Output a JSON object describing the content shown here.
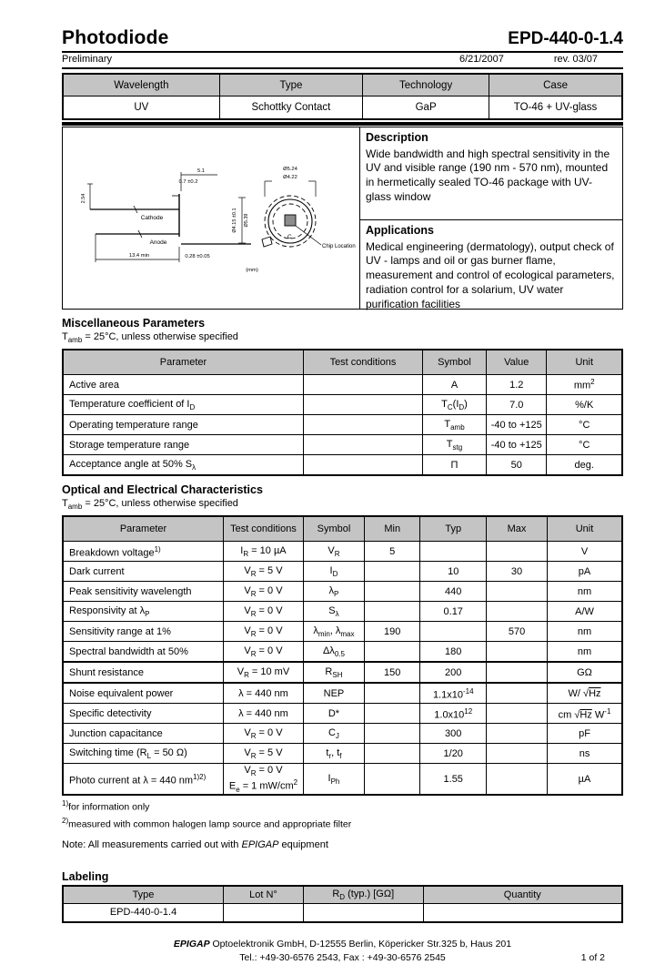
{
  "page": {
    "title": "Photodiode",
    "part_number": "EPD-440-0-1.4",
    "status": "Preliminary",
    "date": "6/21/2007",
    "revision": "rev. 03/07",
    "page_indicator": "1 of 2"
  },
  "classification": {
    "headers": [
      "Wavelength",
      "Type",
      "Technology",
      "Case"
    ],
    "rows": [
      [
        "UV",
        "Schottky Contact",
        "GaP",
        "TO-46 + UV-glass"
      ]
    ]
  },
  "diagram": {
    "cathode": "Cathode",
    "anode": "Anode",
    "chip_location": "Chip Location",
    "chip_marker": "C",
    "units": "(mm)",
    "dim_height": "5.1",
    "dim_rim": "0.7 ±0.2",
    "dim_pitch": "2.54",
    "dim_lead_len": "13.4 min",
    "dim_lead_dia": "0.28 ±0.05",
    "dim_inner_dia": "Ø4.15 ±0.1",
    "dim_outer_dia": "Ø5.39",
    "dim_cap_outer": "Ø5.24",
    "dim_cap_inner": "Ø4.22"
  },
  "description": {
    "title": "Description",
    "body": "Wide bandwidth and high spectral sensitivity in the UV and visible range (190 nm - 570 nm), mounted in hermetically sealed TO-46 package with  UV-glass  window"
  },
  "applications": {
    "title": "Applications",
    "body": "Medical engineering (dermatology), output check of UV - lamps and oil or gas burner flame, measurement and control of ecological parameters, radiation control for a solarium, UV water purification facilities"
  },
  "misc": {
    "title": "Miscellaneous Parameters",
    "condition": "T<sub>amb</sub> = 25°C, unless otherwise specified",
    "headers": [
      "Parameter",
      "Test conditions",
      "Symbol",
      "Value",
      "Unit"
    ],
    "rows": [
      [
        "Active area",
        "",
        "A",
        "1.2",
        "mm<sup>2</sup>"
      ],
      [
        "Temperature coefficient of I<sub>D</sub>",
        "",
        "T<sub>C</sub>(I<sub>D</sub>)",
        "7.0",
        "%/K"
      ],
      [
        "Operating temperature range",
        "",
        "T<sub>amb</sub>",
        "-40 to +125",
        "°C"
      ],
      [
        "Storage temperature range",
        "",
        "T<sub>stg</sub>",
        "-40 to +125",
        "°C"
      ],
      [
        "Acceptance angle at 50% S<sub>λ</sub>",
        "",
        "Π",
        "50",
        "deg."
      ]
    ]
  },
  "optical": {
    "title": "Optical and Electrical Characteristics",
    "condition": "T<sub>amb</sub> = 25°C, unless otherwise specified",
    "headers": [
      "Parameter",
      "Test conditions",
      "Symbol",
      "Min",
      "Typ",
      "Max",
      "Unit"
    ],
    "rows": [
      [
        "Breakdown voltage<sup>1)</sup>",
        "I<sub>R</sub> = 10 µA",
        "V<sub>R</sub>",
        "5",
        "",
        "",
        "V"
      ],
      [
        "Dark current",
        "V<sub>R</sub> = 5 V",
        "I<sub>D</sub>",
        "",
        "10",
        "30",
        "pA"
      ],
      [
        "Peak sensitivity wavelength",
        "V<sub>R</sub> = 0 V",
        "λ<sub>P</sub>",
        "",
        "440",
        "",
        "nm"
      ],
      [
        "Responsivity at λ<sub>P</sub>",
        "V<sub>R</sub> = 0 V",
        "S<sub>λ</sub>",
        "",
        "0.17",
        "",
        "A/W"
      ],
      [
        "Sensitivity range at 1%",
        "V<sub>R</sub> = 0 V",
        "λ<sub>min</sub>, λ<sub>max</sub>",
        "190",
        "",
        "570",
        "nm"
      ],
      [
        "Spectral bandwidth at 50%",
        "V<sub>R</sub> = 0 V",
        "Δλ<sub>0.5</sub>",
        "",
        "180",
        "",
        "nm"
      ],
      [
        "Shunt resistance",
        "V<sub>R</sub> = 10 mV",
        "R<sub>SH</sub>",
        "150",
        "200",
        "",
        "GΩ"
      ],
      [
        "Noise equivalent power",
        "λ = 440 nm",
        "NEP",
        "",
        "1.1x10<sup>-14</sup>",
        "",
        "W/ √<span class=\"ol\">Hz</span>"
      ],
      [
        "Specific detectivity",
        "λ = 440 nm",
        "D*",
        "",
        "1.0x10<sup>12</sup>",
        "",
        "cm √<span class=\"ol\">Hz</span> W<sup>-1</sup>"
      ],
      [
        "Junction capacitance",
        "V<sub>R</sub> = 0 V",
        "C<sub>J</sub>",
        "",
        "300",
        "",
        "pF"
      ],
      [
        "Switching time (R<sub>L</sub> = 50 Ω)",
        "V<sub>R</sub> = 5 V",
        "t<sub>r</sub>, t<sub>f</sub>",
        "",
        "1/20",
        "",
        "ns"
      ],
      [
        "Photo current at λ = 440 nm<sup>1)2)</sup>",
        "V<sub>R</sub> = 0 V<br>E<sub>e</sub> = 1 mW/cm<sup>2</sup>",
        "I<sub>Ph</sub>",
        "",
        "1.55",
        "",
        "µA"
      ]
    ]
  },
  "footnotes": {
    "f1": "<sup>1)</sup>for information only",
    "f2": "<sup>2)</sup>measured with common halogen lamp source and appropriate filter",
    "note": "Note: All measurements carried out with <i>EPIGAP</i>  equipment"
  },
  "labeling": {
    "title": "Labeling",
    "headers": [
      "Type",
      "Lot N°",
      "R<sub>D</sub> (typ.) [GΩ]",
      "Quantity"
    ],
    "rows": [
      [
        "EPD-440-0-1.4",
        "",
        "",
        ""
      ]
    ]
  },
  "footer": {
    "line1": "<b><i>EPIGAP</i></b> Optoelektronik GmbH, D-12555 Berlin, Köpericker Str.325 b, Haus 201",
    "line2": "Tel.: +49-30-6576 2543, Fax : +49-30-6576 2545"
  }
}
